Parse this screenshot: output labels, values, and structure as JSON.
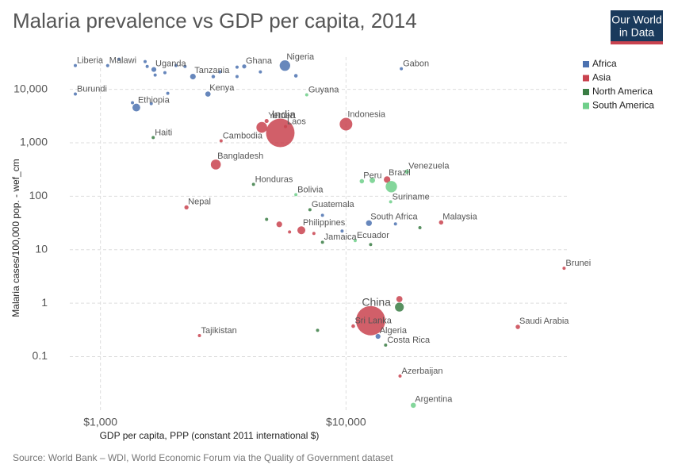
{
  "chart_data": {
    "type": "scatter",
    "title": "Malaria prevalence vs GDP per capita, 2014",
    "x_label": "GDP per capita, PPP (constant 2011 international $)",
    "y_label": "Malaria cases/100,000 pop. - wef_cm",
    "source": "Source: World Bank – WDI, World Economic Forum via the Quality of Government dataset",
    "logo": [
      "Our World",
      "in Data"
    ],
    "x_log": true,
    "y_log": true,
    "grid": true,
    "legend": "right",
    "xlim": [
      750,
      80000
    ],
    "ylim": [
      0.009,
      40000
    ],
    "xticks": [
      {
        "value": 1000,
        "label": "$1,000"
      },
      {
        "value": 10000,
        "label": "$10,000"
      }
    ],
    "yticks": [
      0.1,
      1,
      10,
      100,
      {
        "value": 1000,
        "label": "1,000"
      },
      {
        "value": 10000,
        "label": "10,000"
      }
    ],
    "series": [
      {
        "name": "Africa",
        "color": "#4c72b0",
        "labels": [
          "Liberia",
          "Malawi",
          null,
          "Uganda",
          null,
          null,
          null,
          null,
          null,
          null,
          "Tanzania",
          null,
          null,
          "Kenya",
          null,
          "Burundi",
          "Ethiopia",
          null,
          null,
          "Ghana",
          null,
          null,
          "Nigeria",
          null,
          null,
          "Gabon",
          "South Africa",
          null,
          null,
          null,
          "Algeria"
        ],
        "x": [
          790,
          1070,
          1190,
          1650,
          1520,
          1550,
          1670,
          1830,
          2030,
          2210,
          2380,
          2880,
          3060,
          2740,
          1880,
          790,
          1400,
          1350,
          1610,
          3850,
          3600,
          4480,
          5640,
          6250,
          3600,
          16800,
          12400,
          15900,
          8020,
          9640,
          13500
        ],
        "y": [
          27800,
          27800,
          36500,
          23500,
          33000,
          26800,
          18500,
          20500,
          27800,
          26800,
          17300,
          17300,
          21200,
          8150,
          8430,
          8150,
          4560,
          5600,
          5400,
          26800,
          26000,
          21200,
          27800,
          17900,
          17300,
          24300,
          31.4,
          30.3,
          44,
          22.3,
          0.239
        ],
        "sizes": [
          4.4,
          17,
          10,
          38,
          8,
          6,
          12,
          9,
          10,
          7,
          51,
          20,
          14,
          45,
          4,
          10,
          97,
          12,
          8,
          27,
          14,
          11,
          177,
          21,
          5,
          1.7,
          54,
          2,
          2,
          1,
          39
        ]
      },
      {
        "name": "Asia",
        "color": "#c9434f",
        "labels": [
          "India",
          "Yemen",
          null,
          "Laos",
          "Cambodia",
          "Indonesia",
          "Bangladesh",
          "Nepal",
          "Brazil",
          "Malaysia",
          "Philippines",
          null,
          null,
          null,
          "Brunei",
          null,
          "China",
          "Sri Lanka",
          "Saudi Arabia",
          "Tajikistan",
          "Azerbaijan"
        ],
        "x": [
          5400,
          4750,
          4540,
          5670,
          3100,
          10000,
          2950,
          2240,
          14700,
          24400,
          6580,
          5350,
          5890,
          7400,
          77300,
          16500,
          12600,
          10700,
          50100,
          2530,
          16600
        ],
        "y": [
          1530,
          2550,
          1940,
          2010,
          1090,
          2230,
          392,
          62,
          205,
          32.4,
          23.1,
          29.8,
          21.5,
          20.1,
          4.49,
          1.19,
          0.47,
          0.372,
          0.36,
          0.247,
          0.0434
        ],
        "sizes": [
          1295,
          26,
          185,
          7,
          15,
          255,
          159,
          28,
          68,
          30,
          100,
          53,
          6,
          7,
          0.4,
          60,
          1364,
          21,
          31,
          8,
          9.6
        ]
      },
      {
        "name": "North America",
        "color": "#3a7d44",
        "labels": [
          "Haiti",
          "Honduras",
          "Guatemala",
          null,
          "Costa Rica",
          null,
          "Jamaica",
          null,
          null,
          null
        ],
        "x": [
          1640,
          4200,
          7130,
          4750,
          14500,
          16500,
          8020,
          12600,
          20000,
          7660
        ],
        "y": [
          1250,
          167,
          56,
          37,
          0.164,
          0.843,
          13.8,
          12.5,
          25.8,
          0.31
        ],
        "sizes": [
          10.6,
          8,
          16,
          6,
          4.8,
          125,
          2.7,
          4,
          4,
          4
        ]
      },
      {
        "name": "South America",
        "color": "#6fcf8a",
        "labels": [
          "Venezuela",
          "Peru",
          null,
          null,
          "Suriname",
          "Bolivia",
          "Guyana",
          "Ecuador",
          "Argentina"
        ],
        "x": [
          17700,
          11600,
          12800,
          15300,
          15200,
          6250,
          6920,
          10900,
          18800
        ],
        "y": [
          288,
          191,
          198,
          151,
          78.7,
          107,
          7880,
          14.8,
          0.0123
        ],
        "sizes": [
          31,
          31,
          48,
          206,
          0.5,
          10.6,
          0.8,
          16,
          43
        ]
      }
    ]
  }
}
